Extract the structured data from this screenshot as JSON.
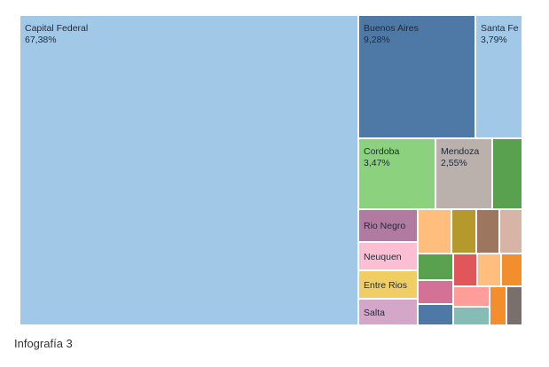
{
  "chart_data": {
    "type": "treemap",
    "label_color": "#1f2a3a",
    "items": [
      {
        "name": "Capital Federal",
        "value": 67.38,
        "value_label": "67,38%",
        "color": "#a2c8e8"
      },
      {
        "name": "Buenos Aires",
        "value": 9.28,
        "value_label": "9,28%",
        "color": "#4e79a7"
      },
      {
        "name": "Santa Fe",
        "value": 3.79,
        "value_label": "3,79%",
        "color": "#a2c8e8"
      },
      {
        "name": "Cordoba",
        "value": 3.47,
        "value_label": "3,47%",
        "color": "#8cd17d"
      },
      {
        "name": "Mendoza",
        "value": 2.55,
        "value_label": "2,55%",
        "color": "#bab0ac"
      },
      {
        "name": "Rio Negro",
        "value": null,
        "value_label": "",
        "color": "#b07aa1"
      },
      {
        "name": "Neuquen",
        "value": null,
        "value_label": "",
        "color": "#fabfd2"
      },
      {
        "name": "Entre Rios",
        "value": null,
        "value_label": "",
        "color": "#f1ce63"
      },
      {
        "name": "Salta",
        "value": null,
        "value_label": "",
        "color": "#d4a6c8"
      },
      {
        "name": "",
        "value": null,
        "value_label": "",
        "color": "#59a14f"
      },
      {
        "name": "",
        "value": null,
        "value_label": "",
        "color": "#ffbe7d"
      },
      {
        "name": "",
        "value": null,
        "value_label": "",
        "color": "#b6992d"
      },
      {
        "name": "",
        "value": null,
        "value_label": "",
        "color": "#9d7660"
      },
      {
        "name": "",
        "value": null,
        "value_label": "",
        "color": "#d7b5a6"
      },
      {
        "name": "",
        "value": null,
        "value_label": "",
        "color": "#59a14f"
      },
      {
        "name": "",
        "value": null,
        "value_label": "",
        "color": "#e15759"
      },
      {
        "name": "",
        "value": null,
        "value_label": "",
        "color": "#ffbe7d"
      },
      {
        "name": "",
        "value": null,
        "value_label": "",
        "color": "#f28e2b"
      },
      {
        "name": "",
        "value": null,
        "value_label": "",
        "color": "#d37295"
      },
      {
        "name": "",
        "value": null,
        "value_label": "",
        "color": "#ff9d9a"
      },
      {
        "name": "",
        "value": null,
        "value_label": "",
        "color": "#f28e2b"
      },
      {
        "name": "",
        "value": null,
        "value_label": "",
        "color": "#79706e"
      },
      {
        "name": "",
        "value": null,
        "value_label": "",
        "color": "#4e79a7"
      },
      {
        "name": "",
        "value": null,
        "value_label": "",
        "color": "#86bcb6"
      }
    ]
  },
  "caption": "Infografía 3"
}
